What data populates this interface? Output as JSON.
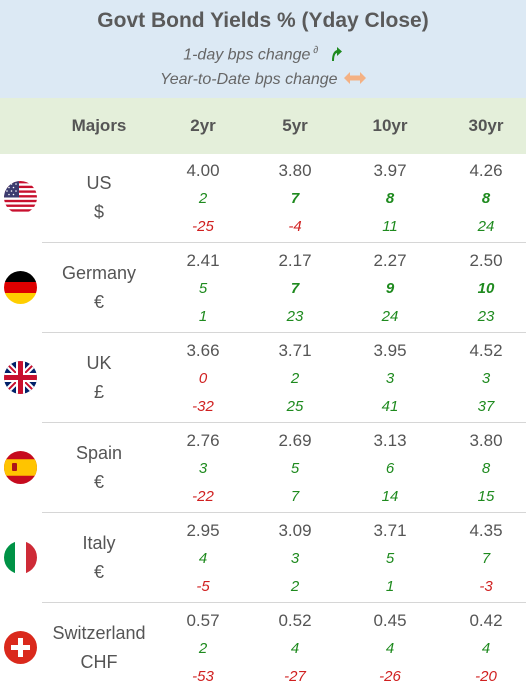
{
  "header": {
    "title": "Govt Bond Yields %  (Yday Close)",
    "subtitle_1": "1-day bps change",
    "subtitle_1_sup": "∂",
    "subtitle_2": "Year-to-Date bps change",
    "arrow_up_icon": "green-curved-up-arrow",
    "arrow_lr_icon": "orange-left-right-arrow"
  },
  "columns": [
    "Majors",
    "2yr",
    "5yr",
    "10yr",
    "30yr"
  ],
  "colors": {
    "positive": "#1e8a1e",
    "negative": "#d02020",
    "header_bg": "#dce9f4",
    "colhead_bg": "#e4efda"
  },
  "rows": [
    {
      "country": "US",
      "currency": "$",
      "flag": "us-flag-icon",
      "yields": [
        "4.00",
        "3.80",
        "3.97",
        "4.26"
      ],
      "day": [
        "2",
        "7",
        "8",
        "8"
      ],
      "ytd": [
        "-25",
        "-4",
        "11",
        "24"
      ]
    },
    {
      "country": "Germany",
      "currency": "€",
      "flag": "germany-flag-icon",
      "yields": [
        "2.41",
        "2.17",
        "2.27",
        "2.50"
      ],
      "day": [
        "5",
        "7",
        "9",
        "10"
      ],
      "ytd": [
        "1",
        "23",
        "24",
        "23"
      ]
    },
    {
      "country": "UK",
      "currency": "£",
      "flag": "uk-flag-icon",
      "yields": [
        "3.66",
        "3.71",
        "3.95",
        "4.52"
      ],
      "day": [
        "0",
        "2",
        "3",
        "3"
      ],
      "ytd": [
        "-32",
        "25",
        "41",
        "37"
      ]
    },
    {
      "country": "Spain",
      "currency": "€",
      "flag": "spain-flag-icon",
      "yields": [
        "2.76",
        "2.69",
        "3.13",
        "3.80"
      ],
      "day": [
        "3",
        "5",
        "6",
        "8"
      ],
      "ytd": [
        "-22",
        "7",
        "14",
        "15"
      ]
    },
    {
      "country": "Italy",
      "currency": "€",
      "flag": "italy-flag-icon",
      "yields": [
        "2.95",
        "3.09",
        "3.71",
        "4.35"
      ],
      "day": [
        "4",
        "3",
        "5",
        "7"
      ],
      "ytd": [
        "-5",
        "2",
        "1",
        "-3"
      ]
    },
    {
      "country": "Switzerland",
      "currency": "CHF",
      "flag": "switzerland-flag-icon",
      "yields": [
        "0.57",
        "0.52",
        "0.45",
        "0.42"
      ],
      "day": [
        "2",
        "4",
        "4",
        "4"
      ],
      "ytd": [
        "-53",
        "-27",
        "-26",
        "-20"
      ]
    }
  ]
}
